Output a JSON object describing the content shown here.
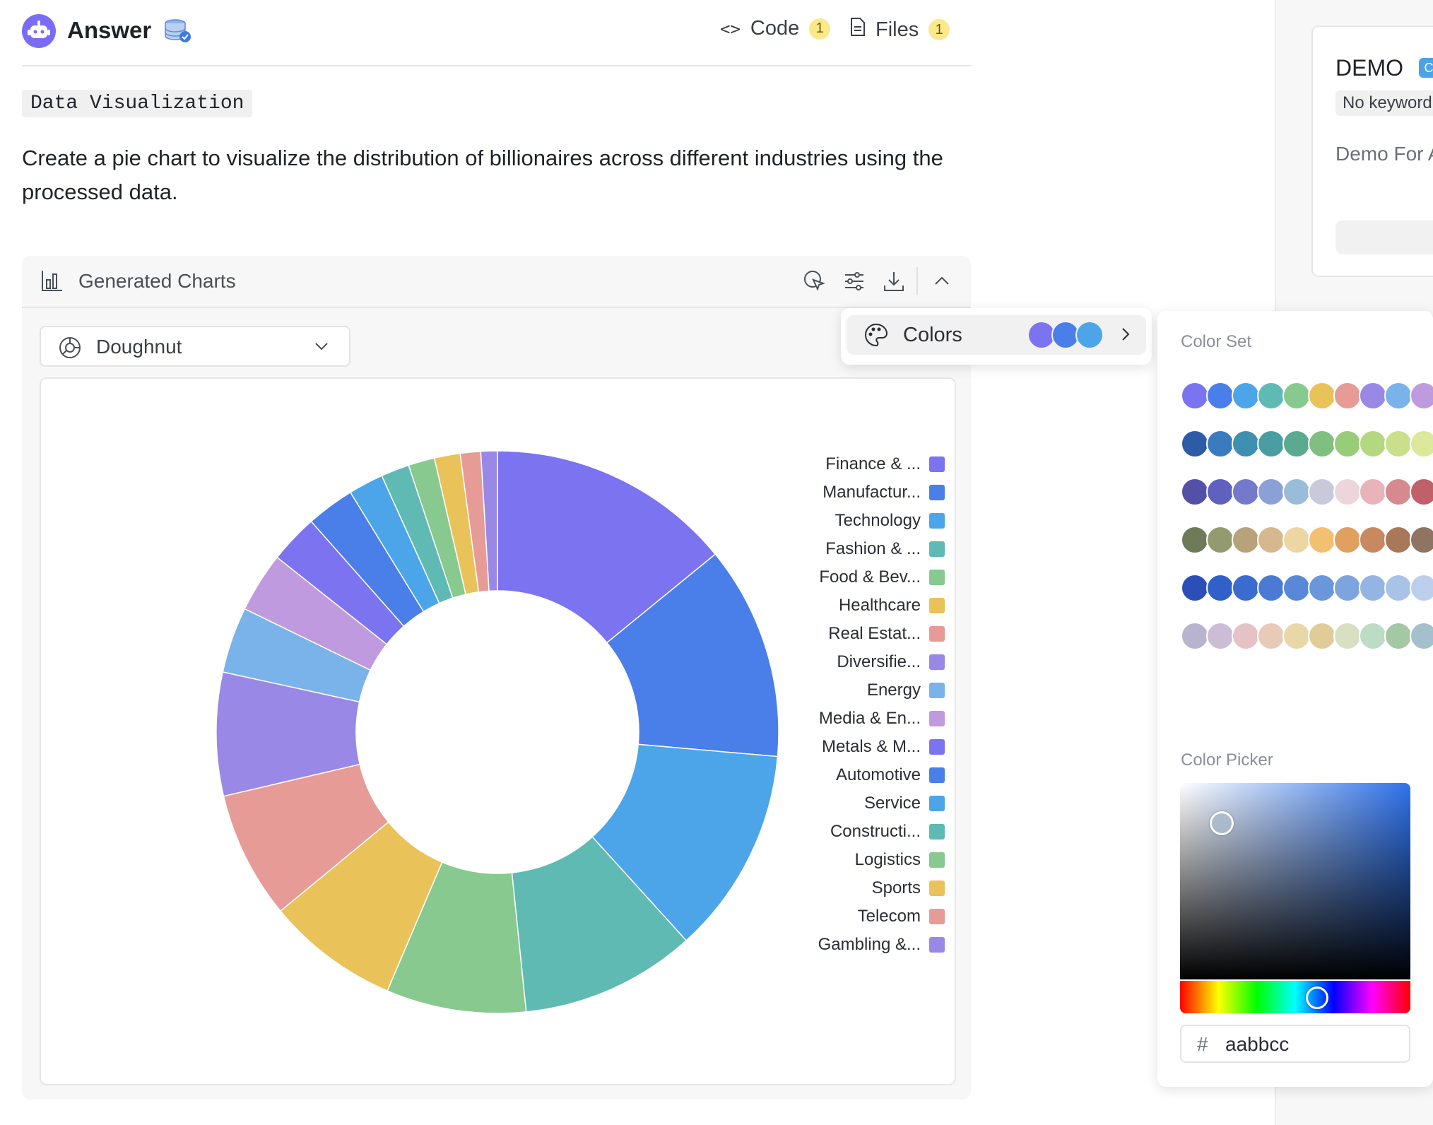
{
  "header": {
    "title": "Answer",
    "code_label": "Code",
    "code_count": "1",
    "files_label": "Files",
    "files_count": "1"
  },
  "intro": {
    "tag": "Data Visualization",
    "prompt": "Create a pie chart to visualize the distribution of billionaires across different industries using the processed data."
  },
  "panel": {
    "title": "Generated Charts",
    "chart_type": "Doughnut"
  },
  "colors_menu": {
    "label": "Colors",
    "preview": [
      "#7b73f0",
      "#4a7ee8",
      "#4ca5e8"
    ]
  },
  "color_panel": {
    "set_heading": "Color Set",
    "picker_heading": "Color Picker",
    "hex_prefix": "#",
    "hex_value": "aabbcc",
    "sets": [
      [
        "#7b73f0",
        "#4a7ee8",
        "#4ca5e8",
        "#5fbab4",
        "#87c98e",
        "#e9c25a",
        "#e69b96",
        "#9a88e6",
        "#7ab2ea",
        "#c09ade"
      ],
      [
        "#2d5ba8",
        "#3a7bc0",
        "#3f8fb0",
        "#4a9da0",
        "#5aaa90",
        "#7fbf7f",
        "#99cc78",
        "#b4d880",
        "#c8e08a",
        "#dce89a"
      ],
      [
        "#5450a8",
        "#6060c0",
        "#7479cc",
        "#8aa0d6",
        "#9bbcd8",
        "#c9c9dc",
        "#ecd6dc",
        "#e8b4ba",
        "#d68a8e",
        "#c06068"
      ],
      [
        "#6e7a58",
        "#949a70",
        "#b8a27c",
        "#d6b88e",
        "#ecd6a4",
        "#f2c070",
        "#e0a060",
        "#c88860",
        "#a87858",
        "#8e7462"
      ],
      [
        "#2b4fb8",
        "#3060c8",
        "#3a6cd0",
        "#4a7ad4",
        "#5a88d8",
        "#6a96dc",
        "#7ea4e0",
        "#94b4e4",
        "#a8c2e8",
        "#bccfec"
      ],
      [
        "#b8b4d0",
        "#ccbcd6",
        "#e6c2c6",
        "#e8cab8",
        "#e8d8a8",
        "#e0cc98",
        "#d8e0c4",
        "#bcdcc6",
        "#a4c8a4",
        "#a4c0cc"
      ]
    ]
  },
  "sidebar": {
    "title": "DEMO",
    "badge": "CS",
    "keyword": "No keyword",
    "description": "Demo For A"
  },
  "chart_data": {
    "type": "pie",
    "title": "",
    "variant": "doughnut",
    "legend_position": "right",
    "categories": [
      "Finance & ...",
      "Manufactur...",
      "Technology",
      "Fashion & ...",
      "Food & Bev...",
      "Healthcare",
      "Real Estat...",
      "Diversifie...",
      "Energy",
      "Media & En...",
      "Metals & M...",
      "Automotive",
      "Service",
      "Constructi...",
      "Logistics",
      "Sports",
      "Telecom",
      "Gambling &..."
    ],
    "values": [
      372,
      324,
      314,
      266,
      212,
      201,
      193,
      187,
      100,
      91,
      74,
      73,
      53,
      43,
      40,
      39,
      31,
      25
    ],
    "colors": [
      "#7b73f0",
      "#4a7ee8",
      "#4ca5e8",
      "#5fbab4",
      "#87c98e",
      "#e9c25a",
      "#e69b96",
      "#9a88e6",
      "#7ab2ea",
      "#c09ade",
      "#7b73f0",
      "#4a7ee8",
      "#4ca5e8",
      "#5fbab4",
      "#87c98e",
      "#e9c25a",
      "#e69b96",
      "#9a88e6"
    ]
  }
}
